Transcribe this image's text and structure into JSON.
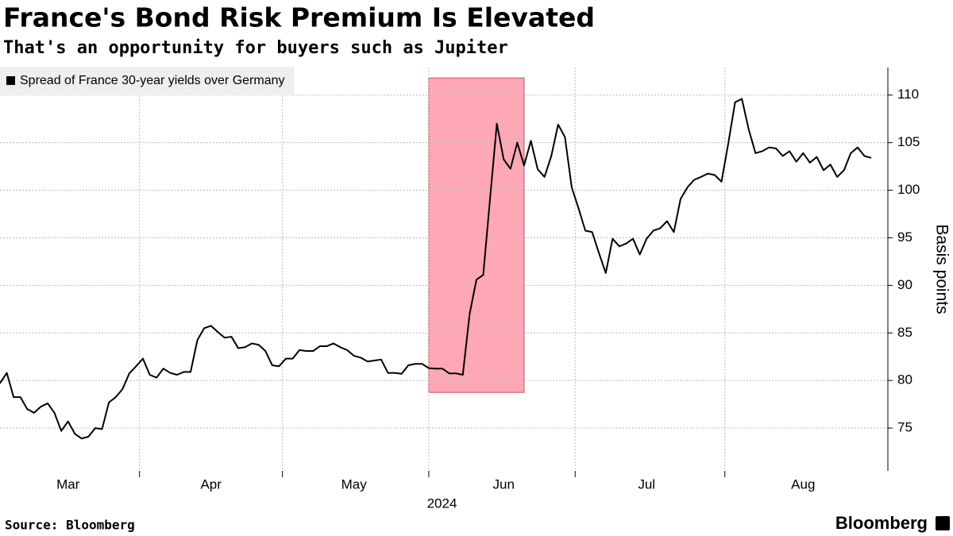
{
  "chart_data": {
    "type": "line",
    "title": "France's Bond Risk Premium Is Elevated",
    "subtitle": "That's an opportunity for buyers such as Jupiter",
    "ylabel": "Basis points",
    "xlabel": "2024",
    "source": "Source: Bloomberg",
    "logo": "Bloomberg",
    "grid": true,
    "legend": "top-left",
    "categories": [
      null,
      null,
      null,
      null,
      null,
      null,
      null,
      null,
      null,
      null,
      "Mar",
      null,
      null,
      null,
      null,
      null,
      null,
      null,
      null,
      null,
      null,
      null,
      null,
      null,
      null,
      null,
      null,
      null,
      null,
      null,
      null,
      "Apr",
      null,
      null,
      null,
      null,
      null,
      null,
      null,
      null,
      null,
      null,
      null,
      null,
      null,
      null,
      null,
      null,
      null,
      null,
      null,
      null,
      "May",
      null,
      null,
      null,
      null,
      null,
      null,
      null,
      null,
      null,
      null,
      null,
      null,
      null,
      null,
      null,
      null,
      null,
      null,
      null,
      null,
      null,
      "Jun",
      null,
      null,
      null,
      null,
      null,
      null,
      null,
      null,
      null,
      null,
      null,
      null,
      null,
      null,
      null,
      null,
      null,
      null,
      null,
      null,
      "Jul",
      null,
      null,
      null,
      null,
      null,
      null,
      null,
      null,
      null,
      null,
      null,
      null,
      null,
      null,
      null,
      null,
      null,
      null,
      null,
      null,
      null,
      null,
      "Aug",
      null,
      null,
      null,
      null,
      null,
      null,
      null,
      null,
      null,
      null
    ],
    "series": [
      {
        "name": "Spread of France 30-year yields over Germany",
        "color": "#000000",
        "values": [
          79.7,
          80.8,
          78.25,
          78.25,
          77.0,
          76.6,
          77.25,
          77.6,
          76.6,
          74.7,
          75.7,
          74.4,
          73.9,
          74.1,
          75,
          74.9,
          77.7,
          78.25,
          79.1,
          80.75,
          81.5,
          82.3,
          80.6,
          80.3,
          81.25,
          80.8,
          80.6,
          80.9,
          80.9,
          84.25,
          85.5,
          85.75,
          85.1,
          84.5,
          84.6,
          83.4,
          83.5,
          83.9,
          83.75,
          83.1,
          81.6,
          81.5,
          82.3,
          82.3,
          83.2,
          83.1,
          83.1,
          83.6,
          83.6,
          83.9,
          83.5,
          83.2,
          82.6,
          82.4,
          82.0,
          82.1,
          82.2,
          80.8,
          80.8,
          80.7,
          81.6,
          81.75,
          81.75,
          81.3,
          81.25,
          81.25,
          80.75,
          80.75,
          80.6,
          87,
          90.6,
          91.1,
          99.1,
          107,
          103.25,
          102.25,
          105,
          102.6,
          105.2,
          102.2,
          101.4,
          103.6,
          106.9,
          105.6,
          100.3,
          98.1,
          95.75,
          95.6,
          93.4,
          91.3,
          94.9,
          94.1,
          94.4,
          94.9,
          93.25,
          94.9,
          95.75,
          96,
          96.75,
          95.6,
          99.1,
          100.3,
          101.1,
          101.4,
          101.75,
          101.6,
          100.9,
          104.9,
          109.25,
          109.6,
          106.4,
          103.9,
          104.1,
          104.5,
          104.4,
          103.6,
          104.1,
          103,
          103.9,
          102.9,
          103.5,
          102.1,
          102.7,
          101.4,
          102.1,
          103.9,
          104.5,
          103.6,
          103.4
        ]
      }
    ],
    "highlight": {
      "start": 63,
      "end": 77,
      "range": [
        78.75,
        111.8
      ],
      "color": "#ffa8b5"
    },
    "ylim": [
      70.5,
      112.9
    ],
    "yticks": [
      75,
      80,
      85,
      90,
      95,
      100,
      105,
      110
    ]
  }
}
